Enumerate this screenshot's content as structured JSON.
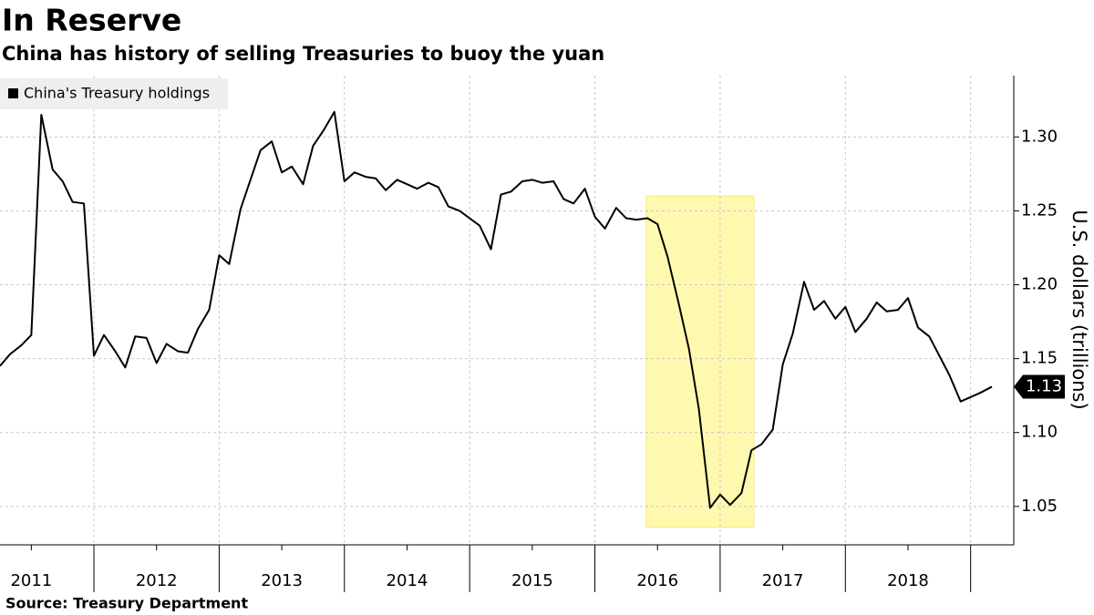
{
  "chart_data": {
    "type": "line",
    "title": "In Reserve",
    "subtitle": "China has history of selling Treasuries to buoy the yuan",
    "source": "Source: Treasury Department",
    "y_axis_label": "U.S. dollars (trillions)",
    "x": [
      2011.25,
      2011.33,
      2011.42,
      2011.5,
      2011.58,
      2011.67,
      2011.75,
      2011.83,
      2011.92,
      2012,
      2012.08,
      2012.17,
      2012.25,
      2012.33,
      2012.42,
      2012.5,
      2012.58,
      2012.67,
      2012.75,
      2012.83,
      2012.92,
      2013,
      2013.08,
      2013.17,
      2013.25,
      2013.33,
      2013.42,
      2013.5,
      2013.58,
      2013.67,
      2013.75,
      2013.83,
      2013.92,
      2014,
      2014.08,
      2014.17,
      2014.25,
      2014.33,
      2014.42,
      2014.5,
      2014.58,
      2014.67,
      2014.75,
      2014.83,
      2014.92,
      2015,
      2015.08,
      2015.17,
      2015.25,
      2015.33,
      2015.42,
      2015.5,
      2015.58,
      2015.67,
      2015.75,
      2015.83,
      2015.92,
      2016,
      2016.08,
      2016.17,
      2016.25,
      2016.33,
      2016.42,
      2016.5,
      2016.58,
      2016.67,
      2016.75,
      2016.83,
      2016.92,
      2017,
      2017.08,
      2017.17,
      2017.25,
      2017.33,
      2017.42,
      2017.5,
      2017.58,
      2017.67,
      2017.75,
      2017.83,
      2017.92,
      2018,
      2018.08,
      2018.17,
      2018.25,
      2018.33,
      2018.42,
      2018.5,
      2018.58,
      2018.67,
      2018.75,
      2018.83,
      2018.92,
      2019,
      2019.08,
      2019.17
    ],
    "series": [
      {
        "name": "China's Treasury holdings",
        "color": "#000000",
        "values": [
          1.145,
          1.153,
          1.159,
          1.166,
          1.315,
          1.278,
          1.27,
          1.256,
          1.255,
          1.152,
          1.166,
          1.155,
          1.144,
          1.165,
          1.164,
          1.147,
          1.16,
          1.155,
          1.154,
          1.17,
          1.183,
          1.22,
          1.214,
          1.251,
          1.271,
          1.291,
          1.297,
          1.276,
          1.28,
          1.268,
          1.294,
          1.304,
          1.317,
          1.27,
          1.276,
          1.273,
          1.272,
          1.264,
          1.271,
          1.268,
          1.265,
          1.269,
          1.266,
          1.253,
          1.25,
          1.245,
          1.24,
          1.224,
          1.261,
          1.263,
          1.27,
          1.271,
          1.269,
          1.27,
          1.258,
          1.255,
          1.265,
          1.246,
          1.238,
          1.252,
          1.245,
          1.244,
          1.245,
          1.241,
          1.219,
          1.187,
          1.157,
          1.116,
          1.049,
          1.058,
          1.051,
          1.059,
          1.088,
          1.092,
          1.102,
          1.146,
          1.167,
          1.202,
          1.183,
          1.189,
          1.177,
          1.185,
          1.168,
          1.177,
          1.188,
          1.182,
          1.183,
          1.191,
          1.171,
          1.165,
          1.152,
          1.139,
          1.121,
          1.124,
          1.127,
          1.131
        ]
      }
    ],
    "last_value_label": "1.13",
    "highlight": {
      "x": [
        2016.41,
        2017.27
      ],
      "y": [
        1.036,
        1.26
      ],
      "color": "#fff9b0"
    },
    "xlim": [
      2011.25,
      2019.33
    ],
    "xticks": [
      2012,
      2013,
      2014,
      2015,
      2016,
      2017,
      2018,
      2019
    ],
    "year_labels": [
      {
        "value": 2011.5,
        "label": "2011"
      },
      {
        "value": 2012.5,
        "label": "2012"
      },
      {
        "value": 2013.5,
        "label": "2013"
      },
      {
        "value": 2014.5,
        "label": "2014"
      },
      {
        "value": 2015.5,
        "label": "2015"
      },
      {
        "value": 2016.5,
        "label": "2016"
      },
      {
        "value": 2017.5,
        "label": "2017"
      },
      {
        "value": 2018.5,
        "label": "2018"
      }
    ],
    "ylim": [
      1.024,
      1.3415
    ],
    "yticks": [
      1.05,
      {
        "value": 1.1,
        "label": "1.10"
      },
      1.15,
      {
        "value": 1.2,
        "label": "1.20"
      },
      1.25,
      {
        "value": 1.3,
        "label": "1.30"
      }
    ],
    "grid": true,
    "legend": "upper left"
  }
}
